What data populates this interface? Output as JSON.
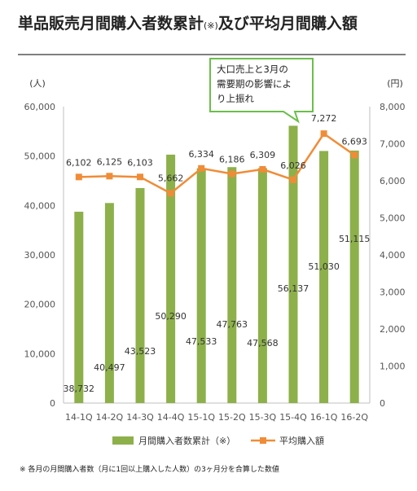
{
  "header": {
    "title_main": "単品販売月間購入者数累計",
    "title_mark": "(※)",
    "title_rest": "及び平均月間購入額"
  },
  "footnote": "※ 各月の月間購入者数（月に1回以上購入した人数）の3ヶ月分を合算した数値",
  "colors": {
    "bar": "#8db04b",
    "line": "#f08c37",
    "callout_border": "#6bbf4a"
  },
  "chart_data": {
    "type": "bar",
    "categories": [
      "14-1Q",
      "14-2Q",
      "14-3Q",
      "14-4Q",
      "15-1Q",
      "15-2Q",
      "15-3Q",
      "15-4Q",
      "16-1Q",
      "16-2Q"
    ],
    "series": [
      {
        "name": "月間購入者数累計（※）",
        "type": "bar",
        "axis": "left",
        "values": [
          38732,
          40497,
          43523,
          50290,
          47533,
          47763,
          47568,
          56137,
          51030,
          51115
        ],
        "labels": [
          "38,732",
          "40,497",
          "43,523",
          "50,290",
          "47,533",
          "47,763",
          "47,568",
          "56,137",
          "51,030",
          "51,115"
        ]
      },
      {
        "name": "平均購入額",
        "type": "line",
        "axis": "right",
        "values": [
          6102,
          6125,
          6103,
          5662,
          6334,
          6186,
          6309,
          6026,
          7272,
          6693
        ],
        "labels": [
          "6,102",
          "6,125",
          "6,103",
          "5,662",
          "6,334",
          "6,186",
          "6,309",
          "6,026",
          "7,272",
          "6,693"
        ]
      }
    ],
    "y_left": {
      "unit": "(人)",
      "min": 0,
      "max": 60000,
      "ticks": [
        0,
        10000,
        20000,
        30000,
        40000,
        50000,
        60000
      ],
      "tick_labels": [
        "0",
        "10,000",
        "20,000",
        "30,000",
        "40,000",
        "50,000",
        "60,000"
      ]
    },
    "y_right": {
      "unit": "(円)",
      "min": 0,
      "max": 8000,
      "ticks": [
        0,
        1000,
        2000,
        3000,
        4000,
        5000,
        6000,
        7000,
        8000
      ],
      "tick_labels": [
        "0",
        "1,000",
        "2,000",
        "3,000",
        "4,000",
        "5,000",
        "6,000",
        "7,000",
        "8,000"
      ]
    },
    "grid": false,
    "legend_position": "bottom",
    "annotation": {
      "lines": [
        "大口売上と3月の",
        "需要期の影響によ",
        "り上振れ"
      ],
      "target_category": "16-1Q"
    }
  }
}
